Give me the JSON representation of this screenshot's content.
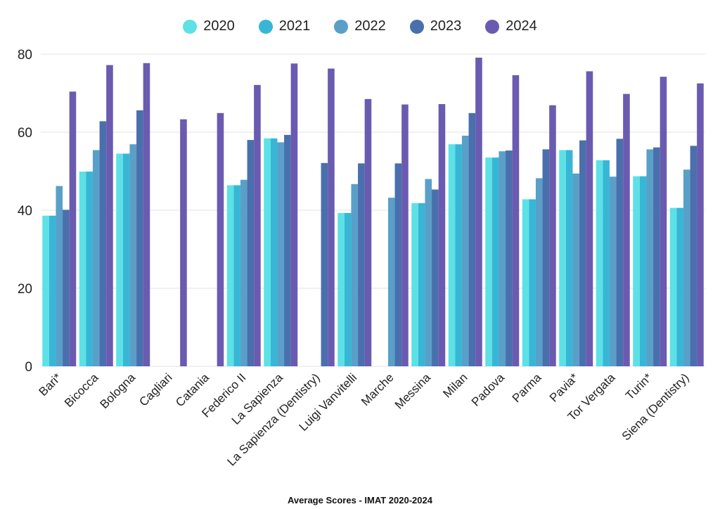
{
  "chart_data": {
    "type": "bar",
    "title": "Average Scores - IMAT 2020-2024",
    "xlabel": "",
    "ylabel": "",
    "ylim": [
      0,
      80
    ],
    "yticks": [
      0,
      20,
      40,
      60,
      80
    ],
    "grid": true,
    "legend_position": "top-center",
    "categories": [
      "Bari*",
      "Bicocca",
      "Bologna",
      "Cagliari",
      "Catania",
      "Federico II",
      "La Sapienza",
      "La Sapienza (Dentistry)",
      "Luigi Vanvitelli",
      "Marche",
      "Messina",
      "Milan",
      "Padova",
      "Parma",
      "Pavia*",
      "Tor Vergata",
      "Turin*",
      "Siena (Dentistry)"
    ],
    "series": [
      {
        "name": "2020",
        "color": "#5ce1e6",
        "values": [
          38.6,
          49.9,
          54.5,
          null,
          null,
          46.4,
          58.4,
          null,
          39.3,
          null,
          41.8,
          56.9,
          53.5,
          42.8,
          55.4,
          52.8,
          48.7,
          40.6
        ]
      },
      {
        "name": "2021",
        "color": "#38b6d6",
        "values": [
          38.6,
          49.9,
          54.5,
          null,
          null,
          46.4,
          58.4,
          null,
          39.3,
          null,
          41.8,
          56.9,
          53.5,
          42.8,
          55.4,
          52.8,
          48.7,
          40.6
        ]
      },
      {
        "name": "2022",
        "color": "#5a9fc8",
        "values": [
          46.2,
          55.4,
          56.9,
          null,
          null,
          47.8,
          57.4,
          null,
          46.7,
          43.2,
          48.0,
          59.1,
          55.1,
          48.2,
          49.4,
          48.6,
          55.6,
          50.4
        ]
      },
      {
        "name": "2023",
        "color": "#4a6fad",
        "values": [
          40.1,
          62.8,
          65.6,
          null,
          null,
          58.0,
          59.3,
          52.1,
          52.0,
          52.0,
          45.3,
          64.9,
          55.3,
          55.6,
          57.9,
          58.3,
          56.1,
          56.5
        ]
      },
      {
        "name": "2024",
        "color": "#6a5bb0",
        "values": [
          70.4,
          77.2,
          77.7,
          63.3,
          64.9,
          72.1,
          77.6,
          76.3,
          68.5,
          67.1,
          67.2,
          79.1,
          74.6,
          66.9,
          75.6,
          69.8,
          74.2,
          72.5
        ]
      }
    ]
  }
}
